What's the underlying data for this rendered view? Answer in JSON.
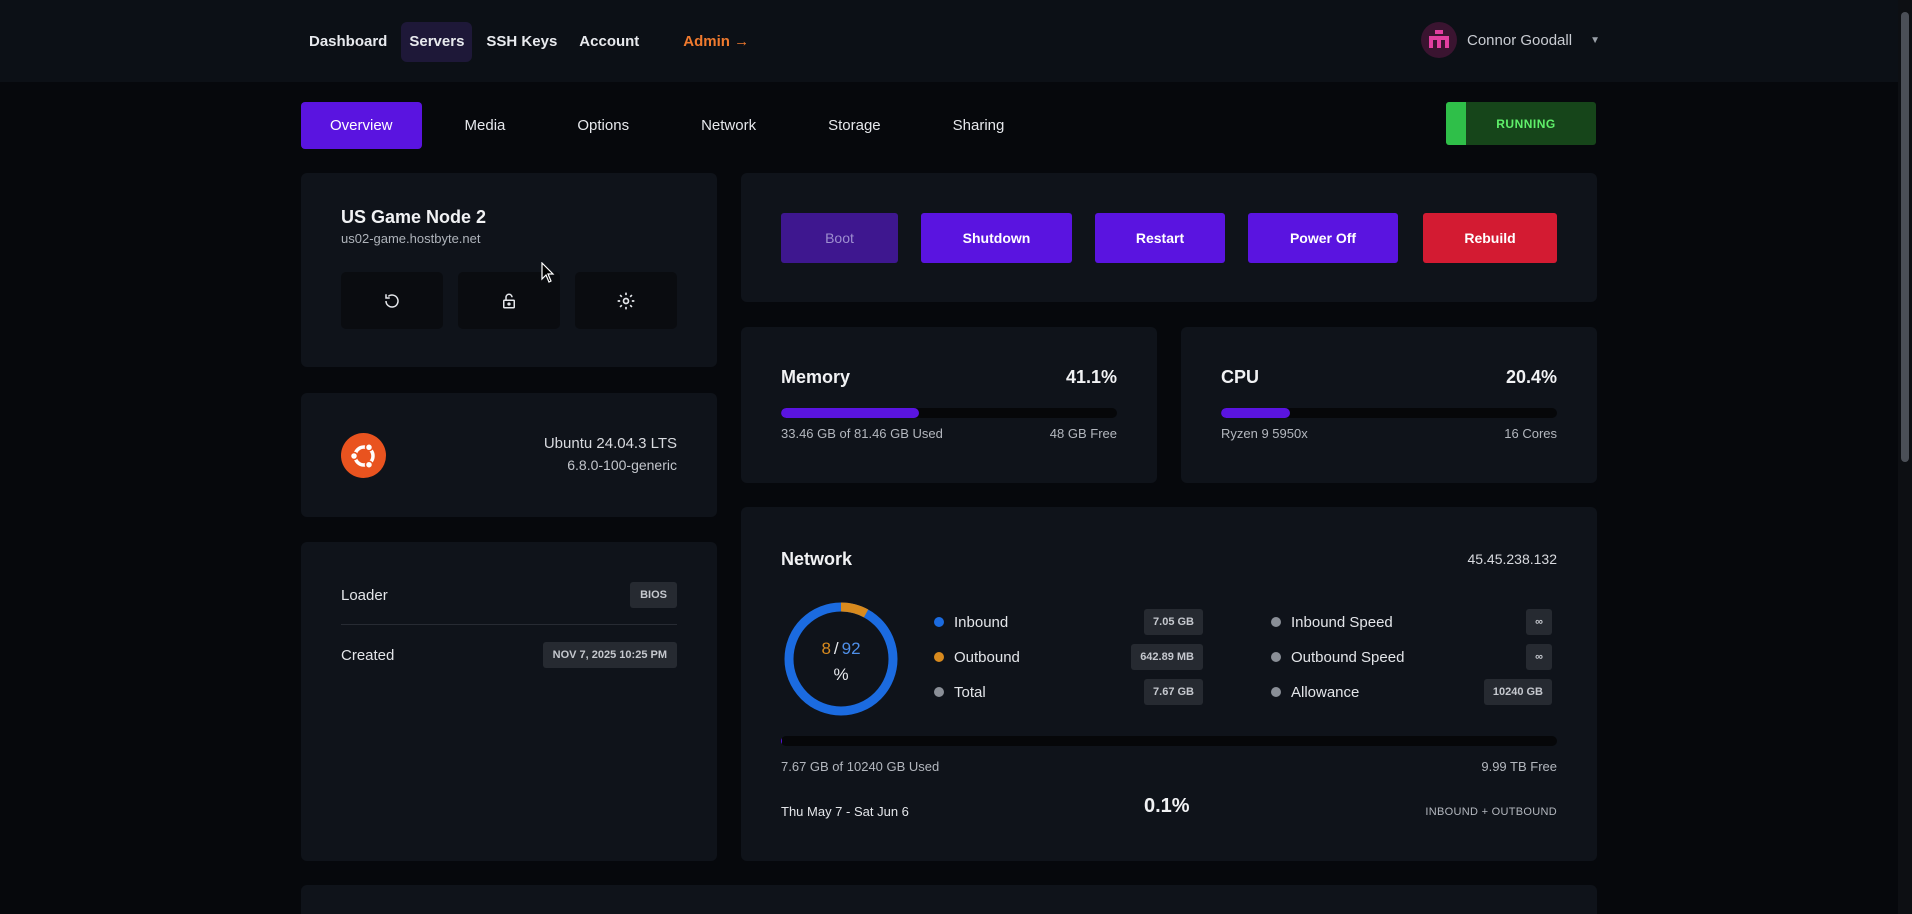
{
  "nav": {
    "items": [
      "Dashboard",
      "Servers",
      "SSH Keys",
      "Account"
    ],
    "admin_label": "Admin →"
  },
  "user": {
    "name": "Connor Goodall",
    "icon": "avatar-icon"
  },
  "tabs": [
    "Overview",
    "Media",
    "Options",
    "Network",
    "Storage",
    "Sharing"
  ],
  "status": "RUNNING",
  "server": {
    "name": "US Game Node 2",
    "hostname": "us02-game.hostbyte.net",
    "actions": [
      "refresh-icon",
      "unlock-icon",
      "gear-icon"
    ]
  },
  "os": {
    "name": "Ubuntu 24.04.3 LTS",
    "kernel": "6.8.0-100-generic",
    "icon": "ubuntu-icon"
  },
  "info": {
    "loader_label": "Loader",
    "loader_value": "BIOS",
    "created_label": "Created",
    "created_value": "NOV 7, 2025 10:25 PM"
  },
  "power": {
    "boot": "Boot",
    "shutdown": "Shutdown",
    "restart": "Restart",
    "power_off": "Power Off",
    "rebuild": "Rebuild"
  },
  "memory": {
    "title": "Memory",
    "percent": "41.1%",
    "percent_value": 41.1,
    "used": "33.46 GB of 81.46 GB Used",
    "free": "48 GB Free"
  },
  "cpu": {
    "title": "CPU",
    "percent": "20.4%",
    "percent_value": 20.4,
    "model": "Ryzen 9 5950x",
    "cores": "16 Cores"
  },
  "network": {
    "title": "Network",
    "ip": "45.45.238.132",
    "donut": {
      "outbound_pct": "8",
      "separator": "/",
      "inbound_pct": "92",
      "unit": "%"
    },
    "legend": [
      {
        "label": "Inbound",
        "value": "7.05 GB",
        "color": "#1b6be0"
      },
      {
        "label": "Outbound",
        "value": "642.89 MB",
        "color": "#d88a1e"
      },
      {
        "label": "Total",
        "value": "7.67 GB",
        "color": "#8a8f97"
      }
    ],
    "limits": [
      {
        "label": "Inbound Speed",
        "value": "∞"
      },
      {
        "label": "Outbound Speed",
        "value": "∞"
      },
      {
        "label": "Allowance",
        "value": "10240 GB"
      }
    ],
    "used": "7.67 GB of 10240 GB Used",
    "free": "9.99 TB Free",
    "period": "Thu May 7 - Sat Jun 6",
    "usage_pct": "0.1%",
    "usage_pct_value": 0.1,
    "scope": "INBOUND + OUTBOUND"
  },
  "colors": {
    "accent": "#5a14e0",
    "danger": "#d31b32",
    "running": "#2fbf49",
    "inbound": "#1b6be0",
    "outbound": "#d88a1e"
  }
}
